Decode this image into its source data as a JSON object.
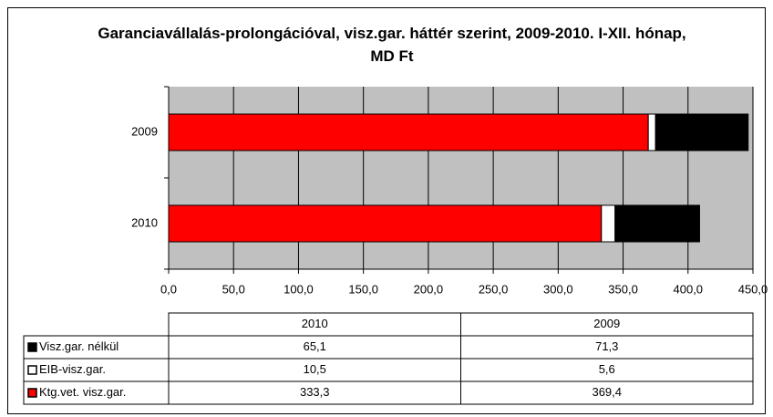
{
  "chart_data": {
    "type": "bar",
    "orientation": "horizontal",
    "stacked": true,
    "title": "Garanciavállalás-prolongációval, visz.gar. háttér szerint, 2009-2010. I-XII. hónap, MD Ft",
    "categories": [
      "2010",
      "2009"
    ],
    "series": [
      {
        "name": "Visz.gar. nélkül",
        "color": "#000000",
        "values": [
          65.1,
          71.3
        ],
        "value_labels": [
          "65,1",
          "71,3"
        ]
      },
      {
        "name": "EIB-visz.gar.",
        "color": "#ffffff",
        "values": [
          10.5,
          5.6
        ],
        "value_labels": [
          "10,5",
          "5,6"
        ]
      },
      {
        "name": "Ktg.vet. visz.gar.",
        "color": "#ff0000",
        "values": [
          333.3,
          369.4
        ],
        "value_labels": [
          "333,3",
          "369,4"
        ]
      }
    ],
    "xlim": [
      0,
      450
    ],
    "xticks": [
      {
        "value": 0,
        "label": "0,0"
      },
      {
        "value": 50,
        "label": "50,0"
      },
      {
        "value": 100,
        "label": "100,0"
      },
      {
        "value": 150,
        "label": "150,0"
      },
      {
        "value": 200,
        "label": "200,0"
      },
      {
        "value": 250,
        "label": "250,0"
      },
      {
        "value": 300,
        "label": "300,0"
      },
      {
        "value": 350,
        "label": "350,0"
      },
      {
        "value": 400,
        "label": "400,0"
      },
      {
        "value": 450,
        "label": "450,0"
      }
    ],
    "grid": true,
    "data_table": true
  }
}
